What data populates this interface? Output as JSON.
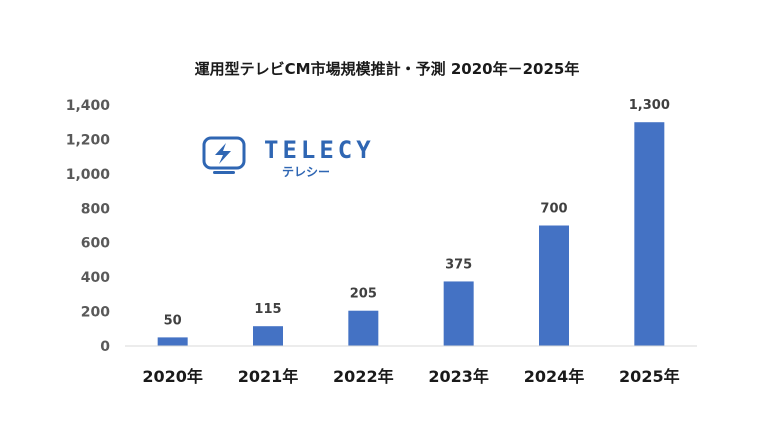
{
  "logo": {
    "name": "TELECY",
    "subtitle": "テレシー",
    "color": "#2f66b3"
  },
  "chart_data": {
    "type": "bar",
    "title": "運用型テレビCM市場規模推計・予測 2020年－2025年",
    "categories": [
      "2020年",
      "2021年",
      "2022年",
      "2023年",
      "2024年",
      "2025年"
    ],
    "values": [
      50,
      115,
      205,
      375,
      700,
      1300
    ],
    "value_labels": [
      "50",
      "115",
      "205",
      "375",
      "700",
      "1,300"
    ],
    "yticks": [
      "0",
      "200",
      "400",
      "600",
      "800",
      "1,000",
      "1,200",
      "1,400"
    ],
    "ylim": [
      0,
      1400
    ],
    "xlabel": "",
    "ylabel": "",
    "grid": false,
    "bar_color": "#4472c4"
  }
}
